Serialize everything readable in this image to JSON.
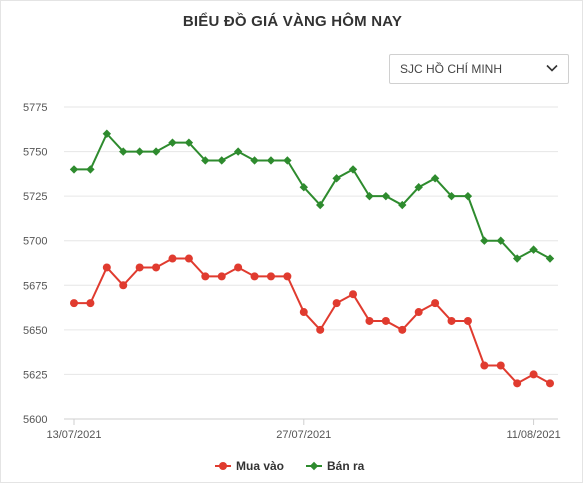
{
  "chart_data": {
    "type": "line",
    "title": "BIỂU ĐỒ GIÁ VÀNG HÔM NAY",
    "xlabel": "",
    "ylabel": "",
    "ylim": [
      5600,
      5775
    ],
    "yticks": [
      5600,
      5625,
      5650,
      5675,
      5700,
      5725,
      5750,
      5775
    ],
    "xtick_labels": [
      {
        "index": 0,
        "label": "13/07/2021"
      },
      {
        "index": 14,
        "label": "27/07/2021"
      },
      {
        "index": 28,
        "label": "11/08/2021"
      }
    ],
    "grid": "horizontal",
    "legend_position": "bottom",
    "series": [
      {
        "name": "Mua vào",
        "color": "#e03b2f",
        "marker": "circle",
        "values": [
          5665,
          5665,
          5685,
          5675,
          5685,
          5685,
          5690,
          5690,
          5680,
          5680,
          5685,
          5680,
          5680,
          5680,
          5660,
          5650,
          5665,
          5670,
          5655,
          5655,
          5650,
          5660,
          5665,
          5655,
          5655,
          5630,
          5630,
          5620,
          5625,
          5620
        ]
      },
      {
        "name": "Bán ra",
        "color": "#2e8b2e",
        "marker": "diamond",
        "values": [
          5740,
          5740,
          5760,
          5750,
          5750,
          5750,
          5755,
          5755,
          5745,
          5745,
          5750,
          5745,
          5745,
          5745,
          5730,
          5720,
          5735,
          5740,
          5725,
          5725,
          5720,
          5730,
          5735,
          5725,
          5725,
          5700,
          5700,
          5690,
          5695,
          5690
        ]
      }
    ]
  },
  "controls": {
    "location_select": {
      "value": "SJC HỒ CHÍ MINH",
      "icon": "chevron-down-icon"
    }
  }
}
